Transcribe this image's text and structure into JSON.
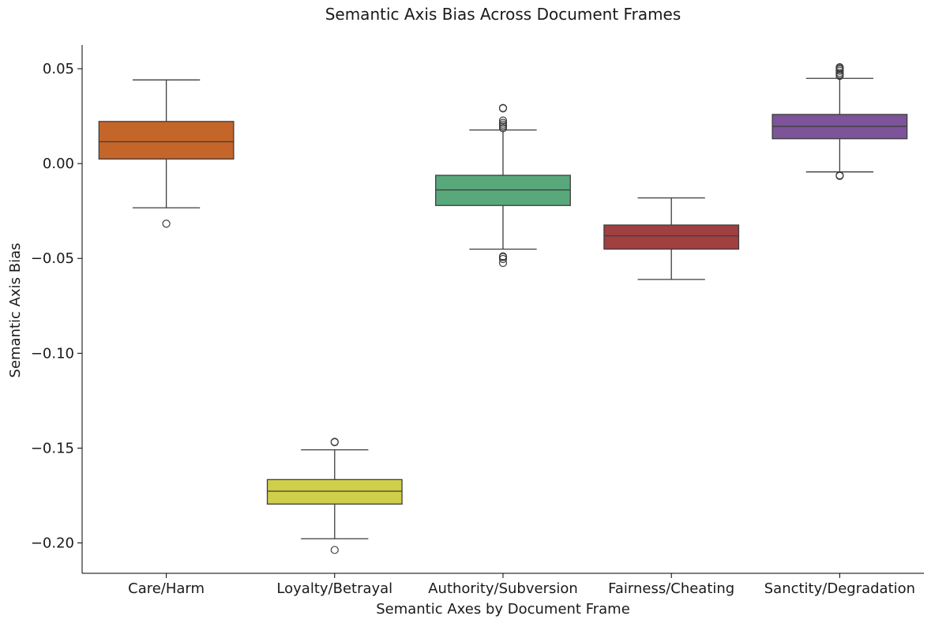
{
  "chart_data": {
    "type": "box",
    "title": "Semantic Axis Bias Across Document Frames",
    "xlabel": "Semantic Axes by Document Frame",
    "ylabel": "Semantic Axis Bias",
    "ylim": [
      -0.216,
      0.0625
    ],
    "yticks": [
      0.05,
      0.0,
      -0.05,
      -0.1,
      -0.15,
      -0.2
    ],
    "ytick_labels": [
      "0.05",
      "0.00",
      "−0.05",
      "−0.10",
      "−0.15",
      "−0.20"
    ],
    "grid": false,
    "categories": [
      "Care/Harm",
      "Loyalty/Betrayal",
      "Authority/Subversion",
      "Fairness/Cheating",
      "Sanctity/Degradation"
    ],
    "boxes": [
      {
        "category": "Care/Harm",
        "color": "#c4652a",
        "whisker_low": -0.0233,
        "q1": 0.0024,
        "median": 0.0115,
        "q3": 0.0222,
        "whisker_high": 0.0441,
        "outliers": [
          -0.0317
        ]
      },
      {
        "category": "Loyalty/Betrayal",
        "color": "#cfcf4a",
        "whisker_low": -0.1978,
        "q1": -0.1795,
        "median": -0.1727,
        "q3": -0.1666,
        "whisker_high": -0.1509,
        "outliers": [
          -0.1469,
          -0.1467,
          -0.2037
        ]
      },
      {
        "category": "Authority/Subversion",
        "color": "#58a87c",
        "whisker_low": -0.0451,
        "q1": -0.0221,
        "median": -0.0139,
        "q3": -0.0062,
        "whisker_high": 0.0177,
        "outliers": [
          0.0293,
          0.0291,
          0.0227,
          0.0215,
          0.0205,
          0.0196,
          0.0186,
          -0.0489,
          -0.0493,
          -0.0503,
          -0.0524
        ]
      },
      {
        "category": "Fairness/Cheating",
        "color": "#a04040",
        "whisker_low": -0.0611,
        "q1": -0.0451,
        "median": -0.0381,
        "q3": -0.0324,
        "whisker_high": -0.0181,
        "outliers": []
      },
      {
        "category": "Sanctity/Degradation",
        "color": "#7d539a",
        "whisker_low": -0.0044,
        "q1": 0.0131,
        "median": 0.0196,
        "q3": 0.0259,
        "whisker_high": 0.0449,
        "outliers": [
          0.0508,
          0.0503,
          0.0497,
          0.0489,
          0.0478,
          0.047,
          0.0462,
          -0.0062,
          -0.0065
        ]
      }
    ]
  }
}
